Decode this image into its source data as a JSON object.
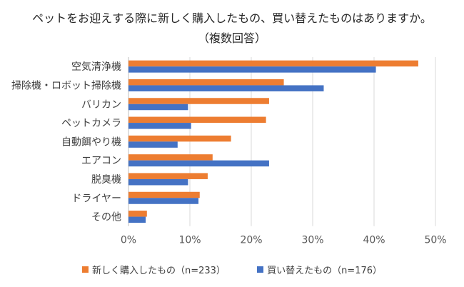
{
  "chart_data": {
    "type": "bar",
    "orientation": "horizontal",
    "title": "ペットをお迎えする際に新しく購入したもの、買い替えたものはありますか。",
    "subtitle": "（複数回答）",
    "categories": [
      "空気清浄機",
      "掃除機・ロボット掃除機",
      "バリカン",
      "ペットカメラ",
      "自動餌やり機",
      "エアコン",
      "脱臭機",
      "ドライヤー",
      "その他"
    ],
    "series": [
      {
        "name": "新しく購入したもの（n=233）",
        "color": "#ED7D31",
        "values": [
          47.2,
          25.3,
          22.9,
          22.4,
          16.7,
          13.7,
          12.9,
          11.6,
          3.0
        ]
      },
      {
        "name": "買い替えたもの（n=176）",
        "color": "#4472C4",
        "values": [
          40.3,
          31.8,
          9.7,
          10.2,
          8.0,
          22.9,
          9.7,
          11.4,
          2.8
        ]
      }
    ],
    "xlim": [
      0,
      50
    ],
    "x_ticks": [
      "0%",
      "10%",
      "20%",
      "30%",
      "40%",
      "50%"
    ],
    "grid": "vertical",
    "legend_position": "bottom"
  }
}
